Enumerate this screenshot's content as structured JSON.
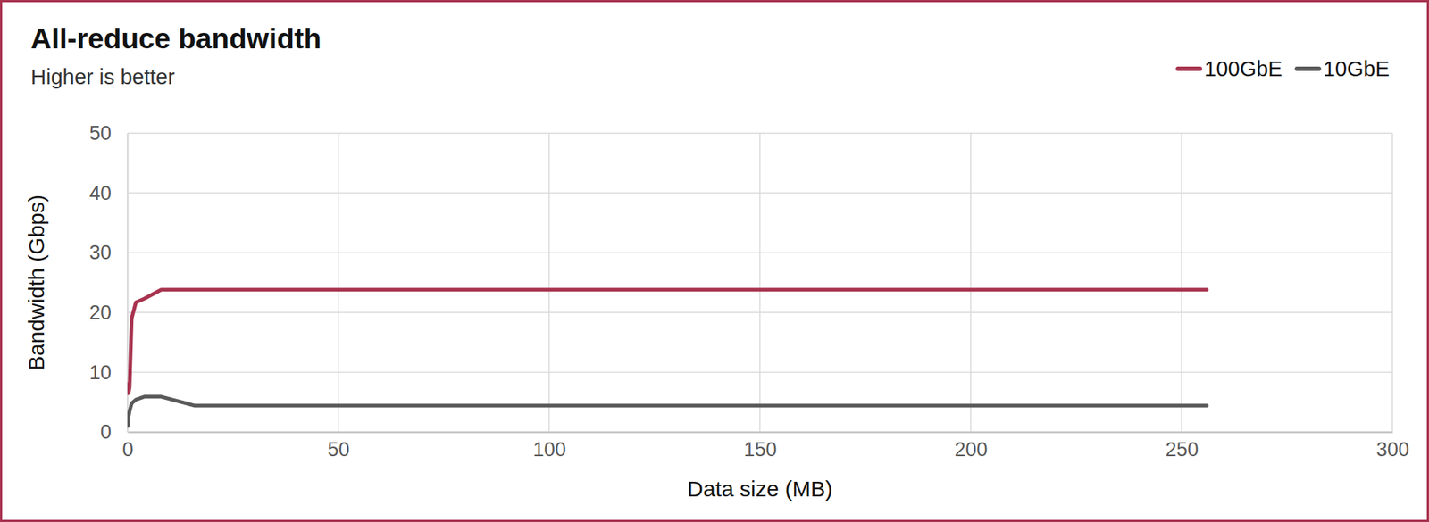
{
  "chart_data": {
    "type": "line",
    "title": "All-reduce bandwidth",
    "subtitle": "Higher is better",
    "x_label": "Data size (MB)",
    "y_label": "Bandwidth (Gbps)",
    "x": [
      0.125,
      0.25,
      0.5,
      1,
      2,
      4,
      8,
      16,
      32,
      64,
      128,
      256
    ],
    "series": [
      {
        "name": "100GbE",
        "color": "#a8334f",
        "values": [
          8,
          6.5,
          7.5,
          19,
          21.7,
          22.3,
          23.8,
          23.8,
          23.8,
          23.8,
          23.8,
          23.8
        ]
      },
      {
        "name": "10GbE",
        "color": "#595959",
        "values": [
          1,
          2.5,
          3.5,
          4.8,
          5.4,
          5.9,
          5.9,
          4.4,
          4.4,
          4.4,
          4.4,
          4.4
        ]
      }
    ],
    "xlim": [
      0,
      300
    ],
    "xticks": [
      0,
      50,
      100,
      150,
      200,
      250,
      300
    ],
    "ylim": [
      0,
      50
    ],
    "yticks": [
      0,
      10,
      20,
      30,
      40,
      50
    ],
    "grid": true,
    "legend": "top-right"
  }
}
